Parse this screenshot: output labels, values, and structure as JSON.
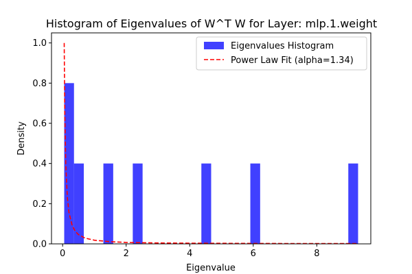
{
  "chart_data": {
    "type": "bar",
    "title": "Histogram of Eigenvalues of W^T W for Layer: mlp.1.weight",
    "xlabel": "Eigenvalue",
    "ylabel": "Density",
    "xlim": [
      -0.35,
      9.7
    ],
    "ylim": [
      0,
      1.05
    ],
    "xticks": [
      0,
      2,
      4,
      6,
      8
    ],
    "yticks": [
      0.0,
      0.2,
      0.4,
      0.6,
      0.8,
      1.0
    ],
    "grid": false,
    "legend_position": "top-right",
    "bin_edges": [
      0.05,
      0.358,
      0.667,
      0.975,
      1.283,
      1.592,
      1.9,
      2.208,
      2.517,
      2.825,
      3.133,
      3.442,
      3.75,
      4.058,
      4.367,
      4.675,
      4.983,
      5.292,
      5.6,
      5.908,
      6.217,
      6.525,
      6.833,
      7.142,
      7.45,
      7.758,
      8.067,
      8.375,
      8.683,
      8.992,
      9.3
    ],
    "series": [
      {
        "name": "Eigenvalues Histogram",
        "kind": "histogram",
        "color": "#0000ff",
        "opacity": 0.75,
        "values": [
          0.8,
          0.4,
          0,
          0,
          0.4,
          0,
          0,
          0.4,
          0,
          0,
          0,
          0,
          0,
          0,
          0.4,
          0,
          0,
          0,
          0,
          0.4,
          0,
          0,
          0,
          0,
          0,
          0,
          0,
          0,
          0,
          0.4
        ]
      },
      {
        "name": "Power Law Fit (alpha=1.34)",
        "kind": "line",
        "style": "dashed",
        "color": "#ff0000",
        "x": [
          0.05,
          0.07,
          0.1,
          0.15,
          0.2,
          0.3,
          0.4,
          0.5,
          0.7,
          1.0,
          1.5,
          2.0,
          3.0,
          4.0,
          5.0,
          6.0,
          7.0,
          8.0,
          9.3
        ],
        "y": [
          1.0,
          0.637,
          0.395,
          0.23,
          0.157,
          0.091,
          0.062,
          0.046,
          0.029,
          0.018,
          0.011,
          0.007,
          0.0045,
          0.0033,
          0.0026,
          0.0021,
          0.0018,
          0.0015,
          0.0012
        ]
      }
    ]
  }
}
